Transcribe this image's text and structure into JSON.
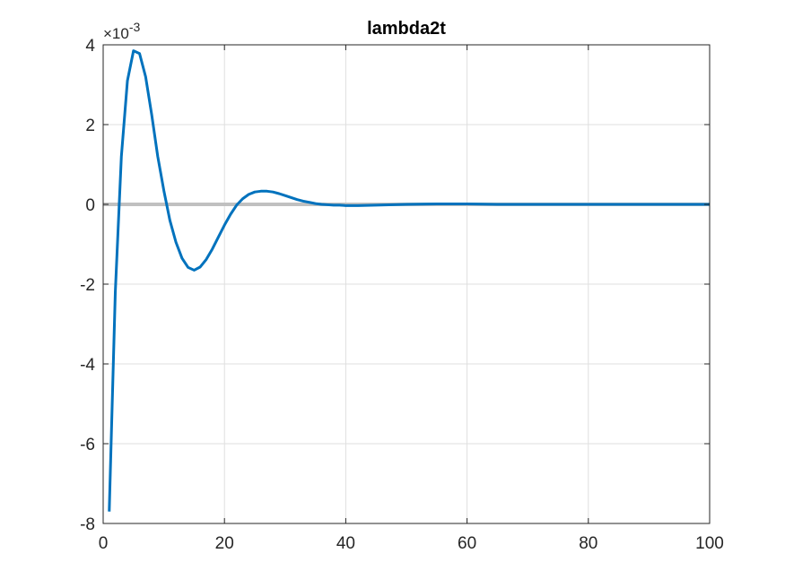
{
  "chart_data": {
    "type": "line",
    "title": "lambda2t",
    "xlabel": "",
    "ylabel": "",
    "xlim": [
      0,
      100
    ],
    "ylim": [
      -8,
      4
    ],
    "y_exponent_label": "×10",
    "y_exponent_power": "-3",
    "xticks": [
      0,
      20,
      40,
      60,
      80,
      100
    ],
    "yticks": [
      -8,
      -6,
      -4,
      -2,
      0,
      2,
      4
    ],
    "grid": true,
    "zero_line": {
      "y": 0,
      "color": "#c0c0c0"
    },
    "series": [
      {
        "color": "#0072bd",
        "x": [
          1,
          2,
          3,
          4,
          5,
          6,
          7,
          8,
          9,
          10,
          11,
          12,
          13,
          14,
          15,
          16,
          17,
          18,
          19,
          20,
          21,
          22,
          23,
          24,
          25,
          26,
          27,
          28,
          29,
          30,
          31,
          32,
          33,
          34,
          35,
          36,
          37,
          38,
          39,
          40,
          42,
          45,
          50,
          55,
          60,
          65,
          70,
          80,
          90,
          100
        ],
        "y": [
          -7.7,
          -2.2,
          1.2,
          3.1,
          3.85,
          3.78,
          3.2,
          2.25,
          1.2,
          0.35,
          -0.4,
          -0.95,
          -1.35,
          -1.58,
          -1.65,
          -1.57,
          -1.38,
          -1.12,
          -0.82,
          -0.52,
          -0.25,
          -0.02,
          0.14,
          0.25,
          0.31,
          0.33,
          0.33,
          0.31,
          0.27,
          0.22,
          0.17,
          0.12,
          0.08,
          0.05,
          0.02,
          0.0,
          -0.01,
          -0.02,
          -0.02,
          -0.03,
          -0.03,
          -0.02,
          0.0,
          0.01,
          0.01,
          0.0,
          0.0,
          0.0,
          0.0,
          0.0
        ]
      }
    ]
  }
}
